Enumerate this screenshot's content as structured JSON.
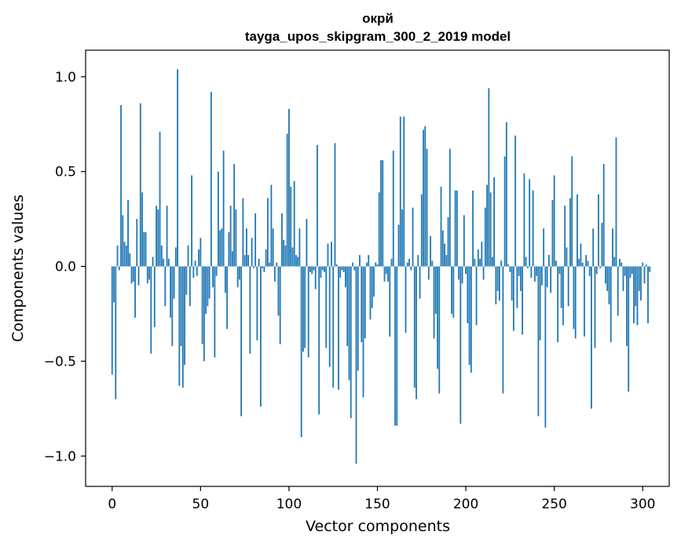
{
  "chart_data": {
    "type": "bar",
    "title_line1": "окрй",
    "title_line2": "tayga_upos_skipgram_300_2_2019 model",
    "xlabel": "Vector components",
    "ylabel": "Components values",
    "xlim": [
      -15,
      315
    ],
    "ylim": [
      -1.16,
      1.14
    ],
    "xticks": [
      0,
      50,
      100,
      150,
      200,
      250,
      300
    ],
    "yticks": [
      -1.0,
      -0.5,
      0.0,
      0.5,
      1.0
    ],
    "xtick_labels": [
      "0",
      "50",
      "100",
      "150",
      "200",
      "250",
      "300"
    ],
    "ytick_labels": [
      "−1.0",
      "−0.5",
      "0.0",
      "0.5",
      "1.0"
    ],
    "bar_color": "#1f77b4",
    "values": [
      -0.57,
      -0.19,
      -0.7,
      0.11,
      -0.02,
      0.85,
      0.27,
      0.13,
      0.11,
      0.35,
      0.07,
      -0.09,
      -0.08,
      -0.27,
      0.25,
      -0.1,
      0.86,
      0.39,
      0.18,
      0.18,
      -0.09,
      -0.07,
      -0.46,
      0.05,
      -0.32,
      0.32,
      0.3,
      0.71,
      0.11,
      0.04,
      -0.21,
      0.32,
      0.04,
      -0.27,
      -0.42,
      -0.17,
      0.1,
      1.04,
      -0.63,
      -0.42,
      -0.64,
      -0.52,
      -0.15,
      0.11,
      -0.21,
      0.48,
      -0.06,
      0.03,
      -0.05,
      0.09,
      0.15,
      -0.41,
      -0.5,
      -0.25,
      -0.21,
      -0.17,
      0.92,
      -0.11,
      -0.48,
      -0.05,
      0.5,
      0.19,
      0.2,
      0.61,
      -0.14,
      -0.33,
      0.18,
      0.32,
      0.08,
      0.54,
      0.3,
      -0.11,
      -0.07,
      -0.79,
      0.36,
      0.06,
      0.2,
      0.06,
      -0.46,
      0.15,
      -0.01,
      0.28,
      -0.39,
      0.04,
      -0.74,
      -0.01,
      -0.03,
      0.09,
      0.36,
      0.02,
      0.43,
      0.2,
      -0.08,
      0.02,
      -0.26,
      -0.41,
      0.28,
      0.14,
      0.11,
      0.7,
      0.83,
      0.42,
      0.1,
      0.45,
      0.06,
      0.05,
      0.2,
      -0.9,
      -0.45,
      -0.43,
      0.25,
      -0.48,
      -0.03,
      -0.04,
      -0.02,
      -0.12,
      0.64,
      -0.78,
      -0.06,
      -0.02,
      -0.03,
      -0.43,
      0.12,
      -0.53,
      0.13,
      -0.64,
      0.65,
      0.01,
      -0.65,
      -0.06,
      -0.02,
      -0.03,
      -0.11,
      -0.42,
      -0.6,
      -0.8,
      0.02,
      -0.02,
      -1.04,
      -0.55,
      0.06,
      -0.4,
      -0.69,
      -0.38,
      0.02,
      0.06,
      -0.28,
      -0.22,
      -0.16,
      0.02,
      0.01,
      0.39,
      0.56,
      0.56,
      -0.08,
      -0.04,
      -0.08,
      -0.37,
      0.04,
      0.61,
      -0.84,
      -0.84,
      0.22,
      0.79,
      0.3,
      0.79,
      -0.35,
      0.02,
      0.04,
      -0.02,
      0.31,
      -0.64,
      -0.7,
      0.06,
      -0.17,
      0.38,
      0.72,
      0.74,
      0.62,
      -0.07,
      0.16,
      0.03,
      -0.38,
      -0.25,
      -0.54,
      -0.67,
      0.42,
      0.19,
      0.12,
      0.06,
      0.26,
      0.62,
      -0.25,
      -0.27,
      0.4,
      0.4,
      -0.07,
      -0.83,
      -0.09,
      0.27,
      -0.04,
      -0.3,
      -0.52,
      -0.56,
      0.4,
      0.04,
      -0.31,
      0.09,
      0.04,
      0.13,
      -0.07,
      0.31,
      0.43,
      0.94,
      0.39,
      0.05,
      0.47,
      -0.2,
      -0.13,
      -0.18,
      0.03,
      -0.67,
      0.58,
      0.76,
      0.01,
      -0.03,
      -0.18,
      -0.34,
      0.69,
      -0.22,
      -0.05,
      -0.13,
      -0.36,
      0.49,
      0.05,
      -0.01,
      0.46,
      -0.06,
      0.4,
      -0.08,
      -0.05,
      -0.79,
      -0.39,
      -0.1,
      0.2,
      -0.85,
      -0.11,
      0.06,
      -0.14,
      0.35,
      0.48,
      0.03,
      -0.4,
      -0.04,
      -0.22,
      -0.31,
      0.32,
      0.1,
      -0.21,
      0.36,
      0.58,
      -0.33,
      -0.38,
      0.38,
      0.04,
      0.12,
      0.02,
      -0.37,
      0.06,
      0.03,
      -0.05,
      -0.75,
      0.2,
      -0.43,
      -0.04,
      0.38,
      -0.01,
      0.23,
      0.54,
      -0.09,
      -0.13,
      -0.2,
      -0.4,
      0.2,
      0.05,
      0.68,
      -0.26,
      0.04,
      0.02,
      -0.13,
      -0.05,
      -0.42,
      -0.66,
      -0.06,
      -0.04,
      -0.3,
      -0.21,
      -0.31,
      -0.13,
      -0.18,
      0.02,
      -0.09,
      0.01,
      -0.3,
      -0.03
    ]
  }
}
